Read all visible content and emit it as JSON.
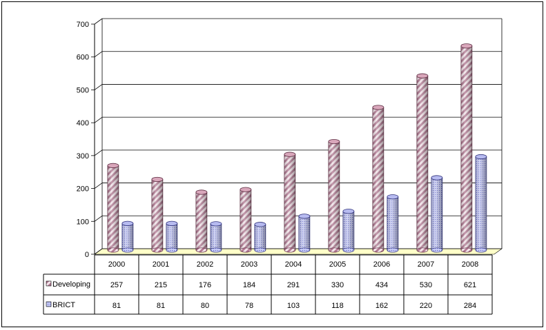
{
  "chart_data": {
    "type": "bar",
    "title": "",
    "xlabel": "",
    "ylabel": "",
    "ylim": [
      0,
      700
    ],
    "yticks": [
      0,
      100,
      200,
      300,
      400,
      500,
      600,
      700
    ],
    "grid": true,
    "legend": "table-left",
    "categories": [
      "2000",
      "2001",
      "2002",
      "2003",
      "2004",
      "2005",
      "2006",
      "2007",
      "2008"
    ],
    "series": [
      {
        "name": "Developing",
        "values": [
          257,
          215,
          176,
          184,
          291,
          330,
          434,
          530,
          621
        ],
        "color": "#c0809a",
        "pattern": "diagonal-stripes"
      },
      {
        "name": "BRICT",
        "values": [
          81,
          81,
          80,
          78,
          103,
          118,
          162,
          220,
          284
        ],
        "color": "#8f8fe0",
        "pattern": "dots"
      }
    ],
    "colors": {
      "floor": "#ffffc8",
      "grid": "#000000"
    }
  }
}
